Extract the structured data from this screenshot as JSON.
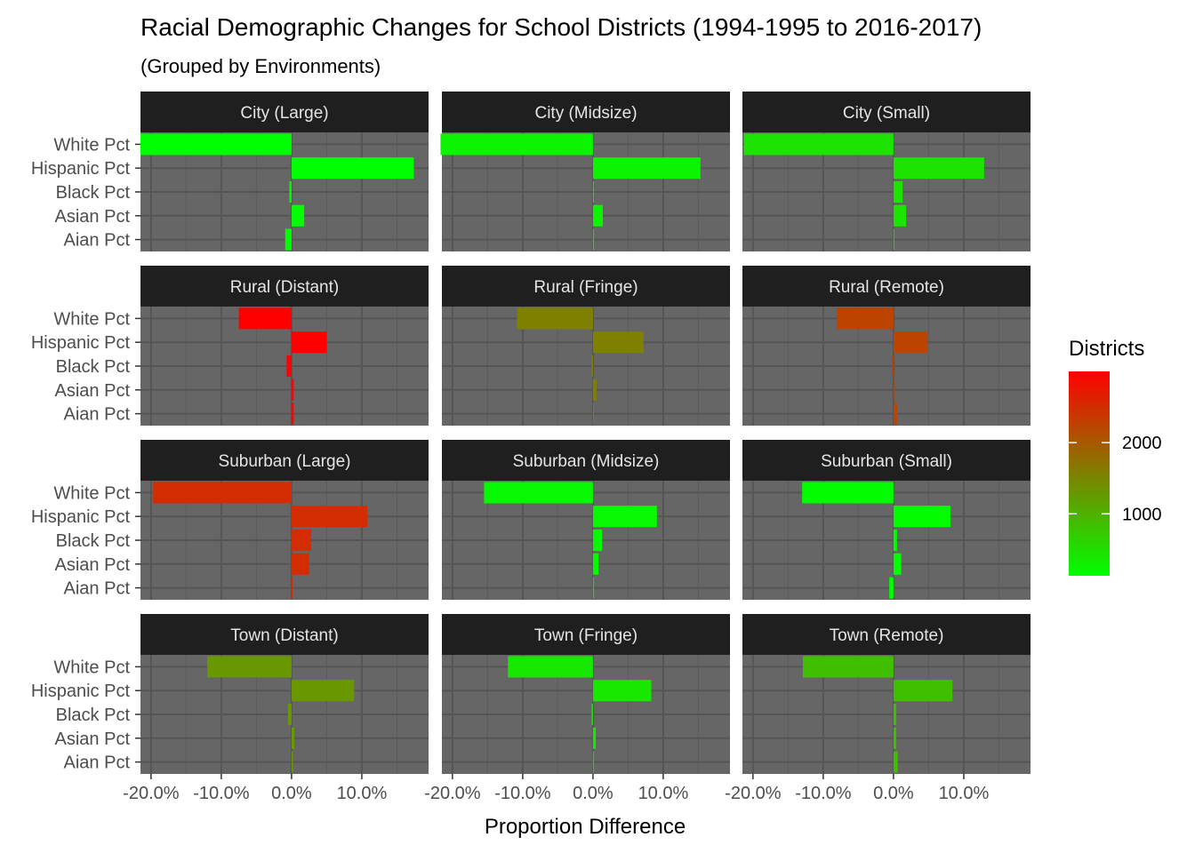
{
  "chart_data": {
    "type": "bar",
    "title": "Racial Demographic Changes for School Districts (1994-1995 to 2016-2017)",
    "subtitle": "(Grouped by Environments)",
    "xlabel": "Proportion Difference",
    "ylabel": "",
    "xlim": [
      -0.215,
      0.195
    ],
    "x_ticks": [
      {
        "value": -0.2,
        "label": "-20.0%"
      },
      {
        "value": -0.1,
        "label": "-10.0%"
      },
      {
        "value": 0.0,
        "label": "0.0%"
      },
      {
        "value": 0.1,
        "label": "10.0%"
      }
    ],
    "categories": [
      "White Pct",
      "Hispanic Pct",
      "Black Pct",
      "Asian Pct",
      "Aian Pct"
    ],
    "legend": {
      "title": "Districts",
      "position": "right",
      "low_color": "#00ff00",
      "high_color": "#ff0000",
      "min": 130,
      "max": 3000,
      "ticks": [
        {
          "value": 1000,
          "label": "1000"
        },
        {
          "value": 2000,
          "label": "2000"
        }
      ]
    },
    "facets": [
      {
        "name": "City (Large)",
        "districts": 130,
        "values": [
          -0.215,
          0.174,
          -0.003,
          0.018,
          -0.009
        ]
      },
      {
        "name": "City (Midsize)",
        "districts": 250,
        "values": [
          -0.217,
          0.153,
          0.001,
          0.014,
          0.001
        ]
      },
      {
        "name": "City (Small)",
        "districts": 450,
        "values": [
          -0.213,
          0.129,
          0.013,
          0.018,
          0.001
        ]
      },
      {
        "name": "Rural (Distant)",
        "districts": 3000,
        "values": [
          -0.075,
          0.05,
          -0.007,
          0.003,
          0.003
        ]
      },
      {
        "name": "Rural (Fringe)",
        "districts": 1550,
        "values": [
          -0.108,
          0.072,
          -0.002,
          0.005,
          0.001
        ]
      },
      {
        "name": "Rural (Remote)",
        "districts": 2250,
        "values": [
          -0.081,
          0.048,
          -0.002,
          0.002,
          0.005
        ]
      },
      {
        "name": "Suburban (Large)",
        "districts": 2500,
        "values": [
          -0.197,
          0.108,
          0.028,
          0.025,
          0.001
        ]
      },
      {
        "name": "Suburban (Midsize)",
        "districts": 200,
        "values": [
          -0.155,
          0.091,
          0.013,
          0.008,
          0.001
        ]
      },
      {
        "name": "Suburban (Small)",
        "districts": 150,
        "values": [
          -0.13,
          0.081,
          0.005,
          0.011,
          -0.006
        ]
      },
      {
        "name": "Town (Distant)",
        "districts": 1300,
        "values": [
          -0.12,
          0.089,
          -0.005,
          0.004,
          0.002
        ]
      },
      {
        "name": "Town (Fringe)",
        "districts": 400,
        "values": [
          -0.121,
          0.083,
          -0.002,
          0.004,
          0.001
        ]
      },
      {
        "name": "Town (Remote)",
        "districts": 850,
        "values": [
          -0.129,
          0.084,
          0.004,
          0.004,
          0.006
        ]
      }
    ]
  }
}
